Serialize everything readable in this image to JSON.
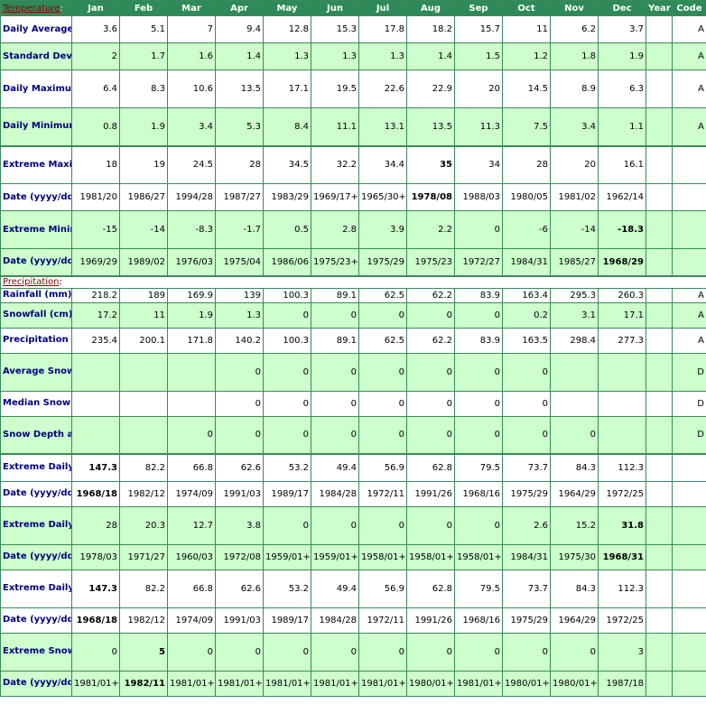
{
  "header": {
    "section_temperature": "Temperature",
    "section_precipitation": "Precipitation",
    "months": [
      "Jan",
      "Feb",
      "Mar",
      "Apr",
      "May",
      "Jun",
      "Jul",
      "Aug",
      "Sep",
      "Oct",
      "Nov",
      "Dec"
    ],
    "year": "Year",
    "code": "Code"
  },
  "temperature": [
    {
      "label": "Daily Average (°C)",
      "values": [
        "3.6",
        "5.1",
        "7",
        "9.4",
        "12.8",
        "15.3",
        "17.8",
        "18.2",
        "15.7",
        "11",
        "6.2",
        "3.7"
      ],
      "year": "",
      "code": "A",
      "bold": [],
      "shade": "w",
      "h": 30
    },
    {
      "label": "Standard Deviation",
      "values": [
        "2",
        "1.7",
        "1.6",
        "1.4",
        "1.3",
        "1.3",
        "1.3",
        "1.4",
        "1.5",
        "1.2",
        "1.8",
        "1.9"
      ],
      "year": "",
      "code": "A",
      "bold": [],
      "shade": "g",
      "h": 30
    },
    {
      "label": "Daily Maximum (°C)",
      "values": [
        "6.4",
        "8.3",
        "10.6",
        "13.5",
        "17.1",
        "19.5",
        "22.6",
        "22.9",
        "20",
        "14.5",
        "8.9",
        "6.3"
      ],
      "year": "",
      "code": "A",
      "bold": [],
      "shade": "w",
      "h": 42
    },
    {
      "label": "Daily Minimum (°C)",
      "values": [
        "0.8",
        "1.9",
        "3.4",
        "5.3",
        "8.4",
        "11.1",
        "13.1",
        "13.5",
        "11.3",
        "7.5",
        "3.4",
        "1.1"
      ],
      "year": "",
      "code": "A",
      "bold": [],
      "shade": "g",
      "h": 42
    },
    {
      "label": "Extreme Maximum (°C)",
      "values": [
        "18",
        "19",
        "24.5",
        "28",
        "34.5",
        "32.2",
        "34.4",
        "35",
        "34",
        "28",
        "20",
        "16.1"
      ],
      "year": "",
      "code": "",
      "bold": [
        7
      ],
      "shade": "w",
      "h": 42,
      "sep": true
    },
    {
      "label": "Date (yyyy/dd)",
      "values": [
        "1981/20",
        "1986/27",
        "1994/28",
        "1987/27",
        "1983/29",
        "1969/17+",
        "1965/30+",
        "1978/08",
        "1988/03",
        "1980/05",
        "1981/02",
        "1962/14"
      ],
      "year": "",
      "code": "",
      "bold": [
        7
      ],
      "shade": "w",
      "h": 30
    },
    {
      "label": "Extreme Minimum (°C)",
      "values": [
        "-15",
        "-14",
        "-8.3",
        "-1.7",
        "0.5",
        "2.8",
        "3.9",
        "2.2",
        "0",
        "-6",
        "-14",
        "-18.3"
      ],
      "year": "",
      "code": "",
      "bold": [
        11
      ],
      "shade": "g",
      "h": 42
    },
    {
      "label": "Date (yyyy/dd)",
      "values": [
        "1969/29",
        "1989/02",
        "1976/03",
        "1975/04",
        "1986/06",
        "1975/23+",
        "1975/29",
        "1975/23",
        "1972/27",
        "1984/31",
        "1985/27",
        "1968/29"
      ],
      "year": "",
      "code": "",
      "bold": [
        11
      ],
      "shade": "g",
      "h": 30
    }
  ],
  "precipitation": [
    {
      "label": "Rainfall (mm)",
      "values": [
        "218.2",
        "189",
        "169.9",
        "139",
        "100.3",
        "89.1",
        "62.5",
        "62.2",
        "83.9",
        "163.4",
        "295.3",
        "260.3"
      ],
      "year": "",
      "code": "A",
      "bold": [],
      "shade": "w",
      "h": 16
    },
    {
      "label": "Snowfall (cm)",
      "values": [
        "17.2",
        "11",
        "1.9",
        "1.3",
        "0",
        "0",
        "0",
        "0",
        "0",
        "0.2",
        "3.1",
        "17.1"
      ],
      "year": "",
      "code": "A",
      "bold": [],
      "shade": "g",
      "h": 28
    },
    {
      "label": "Precipitation (mm)",
      "values": [
        "235.4",
        "200.1",
        "171.8",
        "140.2",
        "100.3",
        "89.1",
        "62.5",
        "62.2",
        "83.9",
        "163.5",
        "298.4",
        "277.3"
      ],
      "year": "",
      "code": "A",
      "bold": [],
      "shade": "w",
      "h": 28
    },
    {
      "label": "Average Snow Depth (cm)",
      "values": [
        "",
        "",
        "",
        "0",
        "0",
        "0",
        "0",
        "0",
        "0",
        "0",
        "",
        ""
      ],
      "year": "",
      "code": "D",
      "bold": [],
      "shade": "g",
      "h": 42
    },
    {
      "label": "Median Snow Depth (cm)",
      "values": [
        "",
        "",
        "",
        "0",
        "0",
        "0",
        "0",
        "0",
        "0",
        "0",
        "",
        ""
      ],
      "year": "",
      "code": "D",
      "bold": [],
      "shade": "w",
      "h": 28
    },
    {
      "label": "Snow Depth at Month-end (cm)",
      "values": [
        "",
        "",
        "0",
        "0",
        "0",
        "0",
        "0",
        "0",
        "0",
        "0",
        "0",
        ""
      ],
      "year": "",
      "code": "D",
      "bold": [],
      "shade": "g",
      "h": 42
    },
    {
      "label": "Extreme Daily Rainfall (mm)",
      "values": [
        "147.3",
        "82.2",
        "66.8",
        "62.6",
        "53.2",
        "49.4",
        "56.9",
        "62.8",
        "79.5",
        "73.7",
        "84.3",
        "112.3"
      ],
      "year": "",
      "code": "",
      "bold": [
        0
      ],
      "shade": "w",
      "h": 30,
      "sep": true
    },
    {
      "label": "Date (yyyy/dd)",
      "values": [
        "1968/18",
        "1982/12",
        "1974/09",
        "1991/03",
        "1989/17",
        "1984/28",
        "1972/11",
        "1991/26",
        "1968/16",
        "1975/29",
        "1964/29",
        "1972/25"
      ],
      "year": "",
      "code": "",
      "bold": [
        0
      ],
      "shade": "w",
      "h": 28
    },
    {
      "label": "Extreme Daily Snowfall (cm)",
      "values": [
        "28",
        "20.3",
        "12.7",
        "3.8",
        "0",
        "0",
        "0",
        "0",
        "0",
        "2.6",
        "15.2",
        "31.8"
      ],
      "year": "",
      "code": "",
      "bold": [
        11
      ],
      "shade": "g",
      "h": 42
    },
    {
      "label": "Date (yyyy/dd)",
      "values": [
        "1978/03",
        "1971/27",
        "1960/03",
        "1972/08",
        "1959/01+",
        "1959/01+",
        "1958/01+",
        "1958/01+",
        "1958/01+",
        "1984/31",
        "1975/30",
        "1968/31"
      ],
      "year": "",
      "code": "",
      "bold": [
        11
      ],
      "shade": "g",
      "h": 28
    },
    {
      "label": "Extreme Daily Precipitation (mm)",
      "values": [
        "147.3",
        "82.2",
        "66.8",
        "62.6",
        "53.2",
        "49.4",
        "56.9",
        "62.8",
        "79.5",
        "73.7",
        "84.3",
        "112.3"
      ],
      "year": "",
      "code": "",
      "bold": [
        0
      ],
      "shade": "w",
      "h": 42
    },
    {
      "label": "Date (yyyy/dd)",
      "values": [
        "1968/18",
        "1982/12",
        "1974/09",
        "1991/03",
        "1989/17",
        "1984/28",
        "1972/11",
        "1991/26",
        "1968/16",
        "1975/29",
        "1964/29",
        "1972/25"
      ],
      "year": "",
      "code": "",
      "bold": [
        0
      ],
      "shade": "w",
      "h": 28
    },
    {
      "label": "Extreme Snow Depth (cm)",
      "values": [
        "0",
        "5",
        "0",
        "0",
        "0",
        "0",
        "0",
        "0",
        "0",
        "0",
        "0",
        "3"
      ],
      "year": "",
      "code": "",
      "bold": [
        1
      ],
      "shade": "g",
      "h": 42
    },
    {
      "label": "Date (yyyy/dd)",
      "values": [
        "1981/01+",
        "1982/11",
        "1981/01+",
        "1981/01+",
        "1981/01+",
        "1981/01+",
        "1981/01+",
        "1980/01+",
        "1981/01+",
        "1980/01+",
        "1980/01+",
        "1987/18"
      ],
      "year": "",
      "code": "",
      "bold": [
        1
      ],
      "shade": "g",
      "h": 28
    }
  ]
}
